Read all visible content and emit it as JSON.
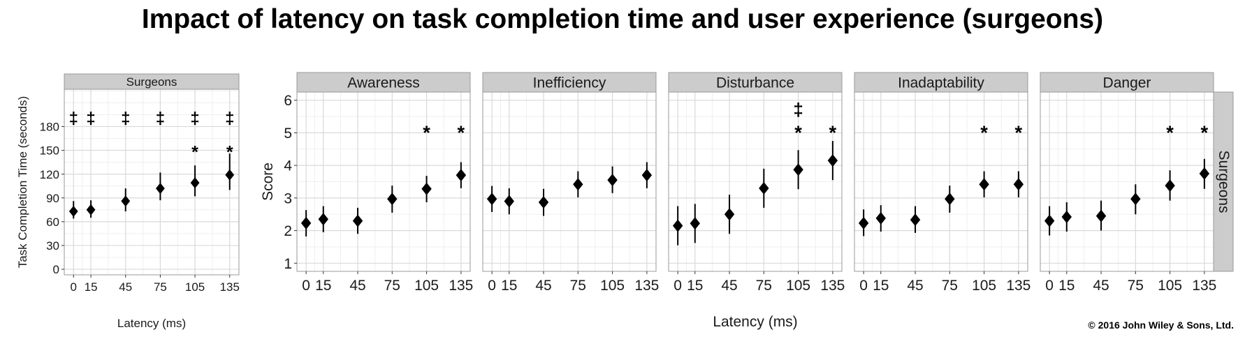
{
  "title": "Impact of latency on task completion time and user experience (surgeons)",
  "copyright": "© 2016 John Wiley & Sons, Ltd.",
  "colors": {
    "strip_fill": "#cccccc",
    "strip_border": "#999999",
    "grid_major": "#d9d9d9",
    "grid_minor": "#efefef",
    "marker": "#000000"
  },
  "chart_data": [
    {
      "type": "scatter",
      "subtype": "point-with-error-bars",
      "panel": "Surgeons",
      "xlabel": "Latency (ms)",
      "ylabel": "Task Completion Time (seconds)",
      "x_ticks": [
        0,
        15,
        45,
        75,
        105,
        135
      ],
      "y_ticks": [
        0,
        30,
        60,
        90,
        120,
        150,
        180
      ],
      "xlim": [
        -8,
        143
      ],
      "ylim": [
        -7,
        227
      ],
      "grid": true,
      "points": [
        {
          "x": 0,
          "y": 73,
          "lower": 64,
          "upper": 86
        },
        {
          "x": 15,
          "y": 75,
          "lower": 65,
          "upper": 87
        },
        {
          "x": 45,
          "y": 86,
          "lower": 73,
          "upper": 102
        },
        {
          "x": 75,
          "y": 102,
          "lower": 87,
          "upper": 122
        },
        {
          "x": 105,
          "y": 109,
          "lower": 92,
          "upper": 131
        },
        {
          "x": 135,
          "y": 119,
          "lower": 100,
          "upper": 146
        }
      ],
      "annotations": [
        {
          "x": 0,
          "text": "‡",
          "y": 192
        },
        {
          "x": 15,
          "text": "‡",
          "y": 192
        },
        {
          "x": 45,
          "text": "‡",
          "y": 192
        },
        {
          "x": 75,
          "text": "‡",
          "y": 192
        },
        {
          "x": 105,
          "text": "‡",
          "y": 192
        },
        {
          "x": 135,
          "text": "‡",
          "y": 192
        },
        {
          "x": 105,
          "text": "*",
          "y": 155
        },
        {
          "x": 135,
          "text": "*",
          "y": 155
        }
      ]
    },
    {
      "type": "scatter",
      "subtype": "faceted-point-with-error-bars",
      "row_strip": "Surgeons",
      "xlabel": "Latency (ms)",
      "ylabel": "Score",
      "x_ticks": [
        0,
        15,
        45,
        75,
        105,
        135
      ],
      "y_ticks": [
        1,
        2,
        3,
        4,
        5,
        6
      ],
      "xlim": [
        -8,
        143
      ],
      "ylim": [
        0.75,
        6.25
      ],
      "grid": true,
      "facets": [
        {
          "name": "Awareness",
          "points": [
            {
              "x": 0,
              "y": 2.23,
              "lower": 1.82,
              "upper": 2.63
            },
            {
              "x": 15,
              "y": 2.35,
              "lower": 1.95,
              "upper": 2.75
            },
            {
              "x": 45,
              "y": 2.3,
              "lower": 1.9,
              "upper": 2.7
            },
            {
              "x": 75,
              "y": 2.97,
              "lower": 2.55,
              "upper": 3.38
            },
            {
              "x": 105,
              "y": 3.28,
              "lower": 2.87,
              "upper": 3.68
            },
            {
              "x": 135,
              "y": 3.7,
              "lower": 3.3,
              "upper": 4.1
            }
          ],
          "annotations": [
            {
              "x": 105,
              "text": "*",
              "y": 5.2
            },
            {
              "x": 135,
              "text": "*",
              "y": 5.2
            }
          ]
        },
        {
          "name": "Inefficiency",
          "points": [
            {
              "x": 0,
              "y": 2.97,
              "lower": 2.57,
              "upper": 3.37
            },
            {
              "x": 15,
              "y": 2.9,
              "lower": 2.5,
              "upper": 3.3
            },
            {
              "x": 45,
              "y": 2.87,
              "lower": 2.45,
              "upper": 3.28
            },
            {
              "x": 75,
              "y": 3.42,
              "lower": 3.02,
              "upper": 3.82
            },
            {
              "x": 105,
              "y": 3.55,
              "lower": 3.15,
              "upper": 3.97
            },
            {
              "x": 135,
              "y": 3.7,
              "lower": 3.3,
              "upper": 4.1
            }
          ],
          "annotations": []
        },
        {
          "name": "Disturbance",
          "points": [
            {
              "x": 0,
              "y": 2.15,
              "lower": 1.55,
              "upper": 2.75
            },
            {
              "x": 15,
              "y": 2.22,
              "lower": 1.62,
              "upper": 2.82
            },
            {
              "x": 45,
              "y": 2.5,
              "lower": 1.9,
              "upper": 3.1
            },
            {
              "x": 75,
              "y": 3.3,
              "lower": 2.7,
              "upper": 3.9
            },
            {
              "x": 105,
              "y": 3.87,
              "lower": 3.27,
              "upper": 4.47
            },
            {
              "x": 135,
              "y": 4.15,
              "lower": 3.55,
              "upper": 4.75
            }
          ],
          "annotations": [
            {
              "x": 105,
              "text": "‡",
              "y": 5.75
            },
            {
              "x": 105,
              "text": "*",
              "y": 5.2
            },
            {
              "x": 135,
              "text": "*",
              "y": 5.2
            }
          ]
        },
        {
          "name": "Inadaptability",
          "points": [
            {
              "x": 0,
              "y": 2.23,
              "lower": 1.83,
              "upper": 2.65
            },
            {
              "x": 15,
              "y": 2.38,
              "lower": 1.97,
              "upper": 2.78
            },
            {
              "x": 45,
              "y": 2.33,
              "lower": 1.93,
              "upper": 2.75
            },
            {
              "x": 75,
              "y": 2.97,
              "lower": 2.55,
              "upper": 3.38
            },
            {
              "x": 105,
              "y": 3.42,
              "lower": 3.02,
              "upper": 3.82
            },
            {
              "x": 135,
              "y": 3.42,
              "lower": 3.02,
              "upper": 3.82
            }
          ],
          "annotations": [
            {
              "x": 105,
              "text": "*",
              "y": 5.2
            },
            {
              "x": 135,
              "text": "*",
              "y": 5.2
            }
          ]
        },
        {
          "name": "Danger",
          "points": [
            {
              "x": 0,
              "y": 2.3,
              "lower": 1.85,
              "upper": 2.75
            },
            {
              "x": 15,
              "y": 2.42,
              "lower": 1.97,
              "upper": 2.87
            },
            {
              "x": 45,
              "y": 2.45,
              "lower": 2.0,
              "upper": 2.92
            },
            {
              "x": 75,
              "y": 2.97,
              "lower": 2.5,
              "upper": 3.42
            },
            {
              "x": 105,
              "y": 3.38,
              "lower": 2.92,
              "upper": 3.85
            },
            {
              "x": 135,
              "y": 3.75,
              "lower": 3.28,
              "upper": 4.2
            }
          ],
          "annotations": [
            {
              "x": 105,
              "text": "*",
              "y": 5.2
            },
            {
              "x": 135,
              "text": "*",
              "y": 5.2
            }
          ]
        }
      ]
    }
  ]
}
